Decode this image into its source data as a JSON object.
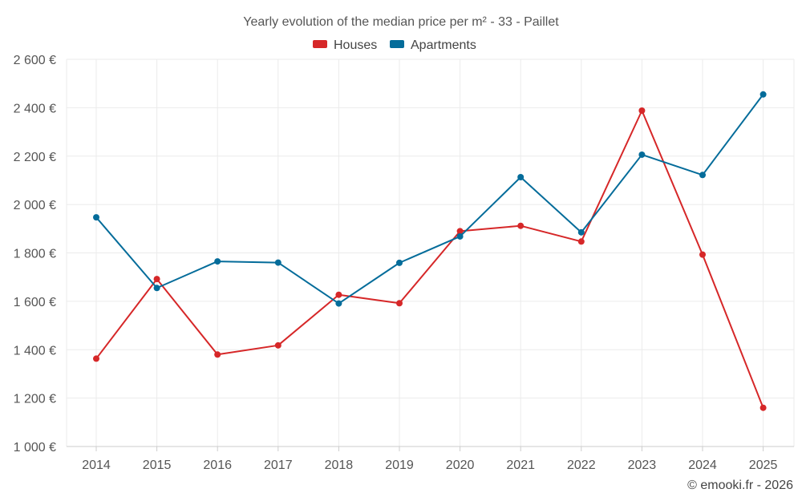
{
  "chart_data": {
    "type": "line",
    "title": "Yearly evolution of the median price per m² - 33 - Paillet",
    "xlabel": "",
    "ylabel": "",
    "categories": [
      "2014",
      "2015",
      "2016",
      "2017",
      "2018",
      "2019",
      "2020",
      "2021",
      "2022",
      "2023",
      "2024",
      "2025"
    ],
    "ylim": [
      1000,
      2600
    ],
    "yticks": [
      1000,
      1200,
      1400,
      1600,
      1800,
      2000,
      2200,
      2400,
      2600
    ],
    "ytick_labels": [
      "1 000 €",
      "1 200 €",
      "1 400 €",
      "1 600 €",
      "1 800 €",
      "2 000 €",
      "2 200 €",
      "2 400 €",
      "2 600 €"
    ],
    "grid": true,
    "legend_position": "top-center",
    "series": [
      {
        "name": "Houses",
        "color": "#d62728",
        "values": [
          1363,
          1692,
          1380,
          1418,
          1627,
          1592,
          1890,
          1912,
          1847,
          2388,
          1793,
          1160
        ]
      },
      {
        "name": "Apartments",
        "color": "#046c9a",
        "values": [
          1947,
          1655,
          1765,
          1760,
          1591,
          1759,
          1868,
          2113,
          1885,
          2206,
          2122,
          2455
        ]
      }
    ],
    "credit": "© emooki.fr - 2026"
  }
}
